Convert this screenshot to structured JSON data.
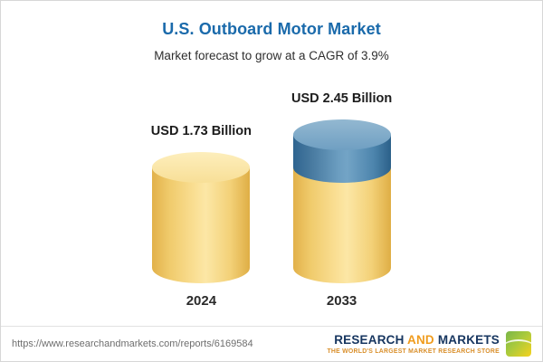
{
  "chart_data": {
    "type": "bar",
    "subtype": "3d-cylinder",
    "title": "U.S. Outboard Motor Market",
    "subtitle": "Market forecast to grow at a CAGR of 3.9%",
    "unit": "USD Billion",
    "cagr_pct": 3.9,
    "categories": [
      "2024",
      "2033"
    ],
    "values": [
      1.73,
      2.45
    ],
    "value_labels": [
      "USD 1.73 Billion",
      "USD 2.45 Billion"
    ],
    "series": [
      {
        "name": "base-2024-level",
        "color": "#f3cf72",
        "values": [
          1.73,
          1.73
        ]
      },
      {
        "name": "growth-to-2033",
        "color": "#4a80aa",
        "values": [
          0,
          0.72
        ]
      }
    ],
    "ylim": [
      0,
      2.6
    ],
    "grid": false,
    "legend": false
  },
  "footer": {
    "url": "https://www.researchandmarkets.com/reports/6169584",
    "logo": {
      "word1": "RESEARCH",
      "word2": "AND",
      "word3": "MARKETS",
      "tagline": "THE WORLD'S LARGEST MARKET RESEARCH STORE"
    }
  },
  "colors": {
    "title_blue": "#1a6aab",
    "gold_body": "#f5d47b",
    "gold_cap": "#fbe6a6",
    "blue_body": "#4a80aa",
    "blue_cap": "#7fa9c8",
    "logo_navy": "#16355f",
    "logo_orange": "#f09c1e"
  }
}
